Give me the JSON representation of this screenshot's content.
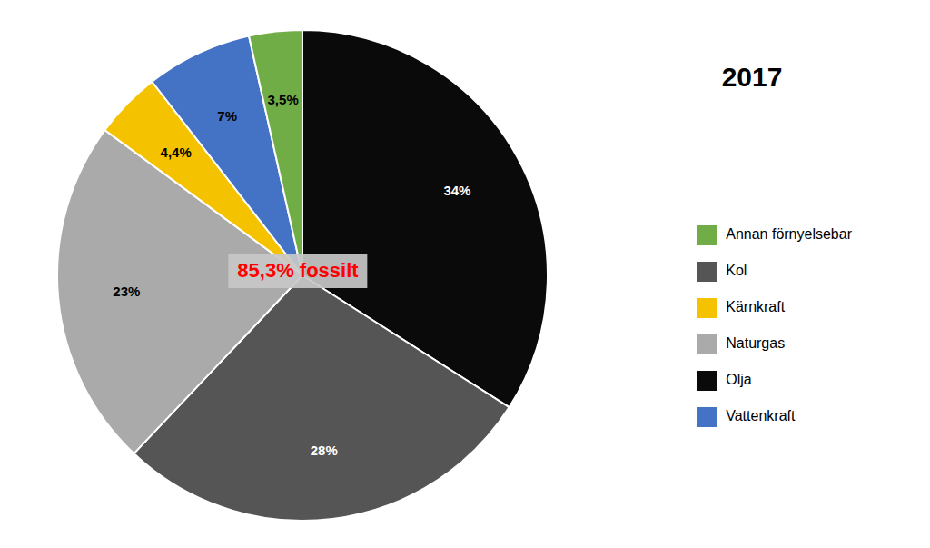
{
  "chart_data": {
    "type": "pie",
    "title": "2017",
    "categories": [
      "Olja",
      "Kol",
      "Naturgas",
      "Kärnkraft",
      "Vattenkraft",
      "Annan förnyelsebar"
    ],
    "values": [
      34,
      28,
      23,
      4.4,
      7,
      3.5
    ],
    "value_labels": [
      "34%",
      "28%",
      "23%",
      "4,4%",
      "7%",
      "3,5%"
    ],
    "colors": [
      "#0a0a0a",
      "#555555",
      "#AAAAAA",
      "#F5C200",
      "#4472C4",
      "#70AD47"
    ],
    "annotations": [
      "85,3% fossilt"
    ],
    "legend": "right",
    "data_labels": true
  }
}
